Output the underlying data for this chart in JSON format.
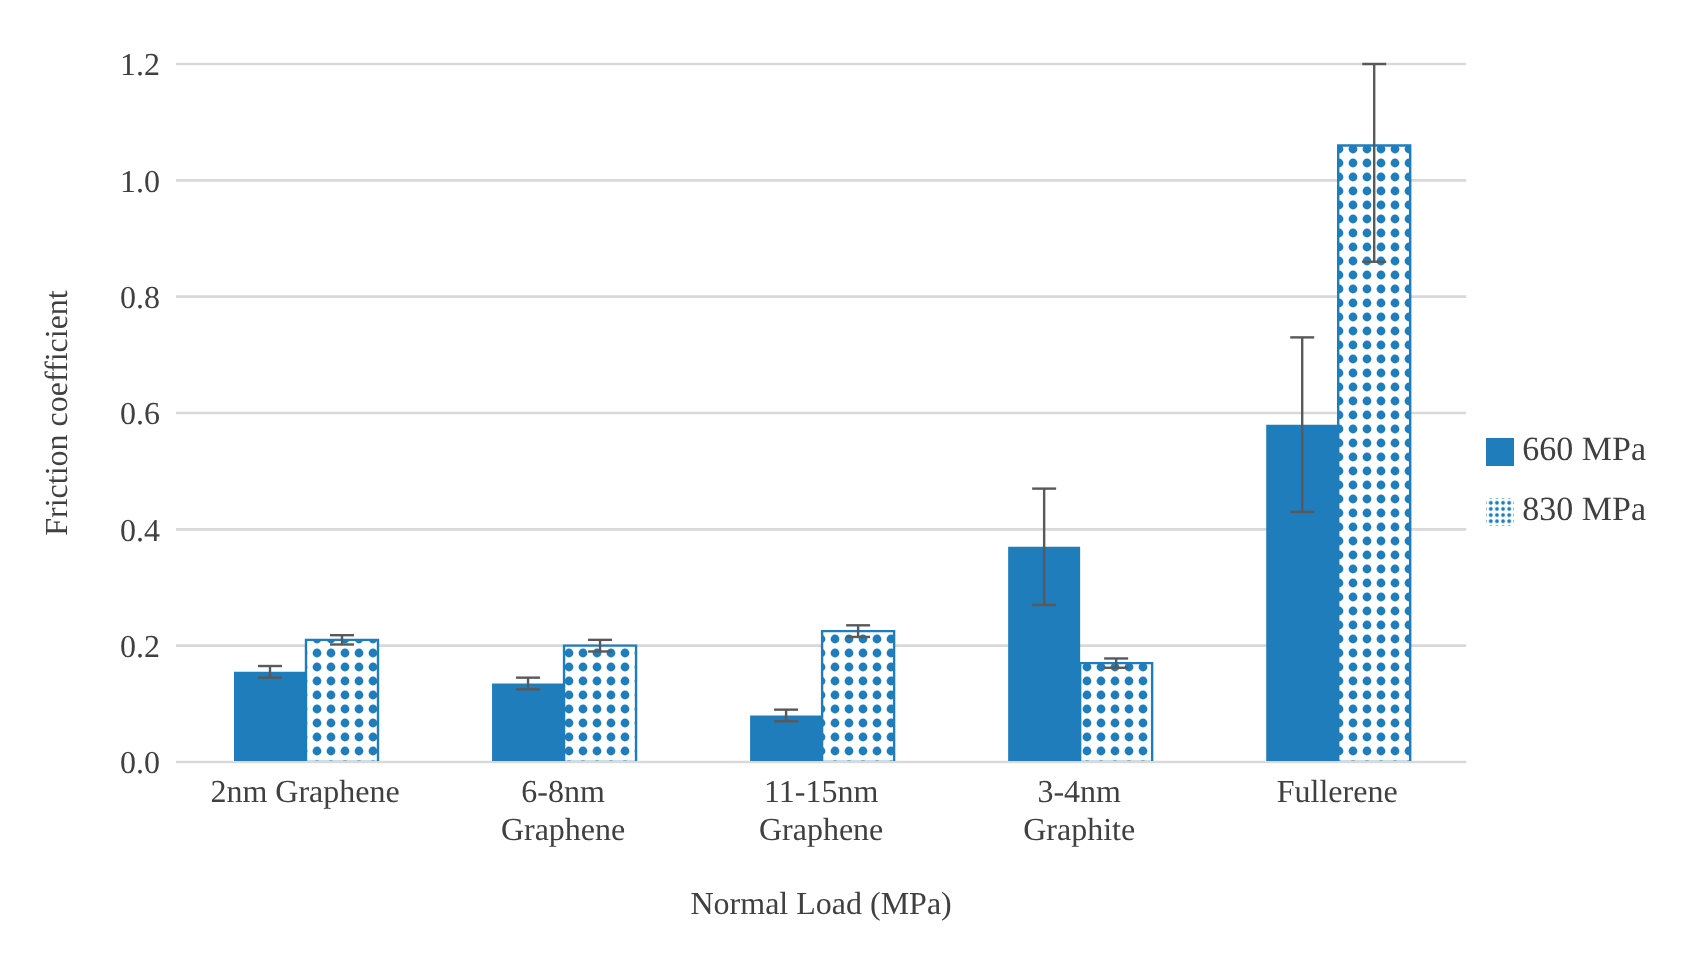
{
  "chart_data": {
    "type": "bar",
    "xlabel": "Normal Load (MPa)",
    "ylabel": "Friction coefficient",
    "categories": [
      "2nm Graphene",
      "6-8nm\nGraphene",
      "11-15nm\nGraphene",
      "3-4nm\nGraphite",
      "Fullerene"
    ],
    "series": [
      {
        "name": "660 MPa",
        "color": "#1f7dbb",
        "values": [
          0.155,
          0.135,
          0.08,
          0.37,
          0.58
        ],
        "errors": [
          0.01,
          0.01,
          0.01,
          0.1,
          0.15
        ]
      },
      {
        "name": "830 MPa",
        "color": "#1f7dbb",
        "values": [
          0.21,
          0.2,
          0.225,
          0.17,
          1.06
        ],
        "errors": [
          0.008,
          0.01,
          0.01,
          0.008,
          [
            0.86,
            1.2
          ]
        ]
      }
    ],
    "ylim": [
      0,
      1.2
    ],
    "yticks": [
      {
        "value": 0,
        "label": "0.0"
      },
      {
        "value": 0.2,
        "label": "0.2"
      },
      {
        "value": 0.4,
        "label": "0.4"
      },
      {
        "value": 0.6,
        "label": "0.6"
      },
      {
        "value": 0.8,
        "label": "0.8"
      },
      {
        "value": 1.0,
        "label": "1.0"
      },
      {
        "value": 1.2,
        "label": "1.2"
      }
    ],
    "grid": "y",
    "legend": "right"
  }
}
